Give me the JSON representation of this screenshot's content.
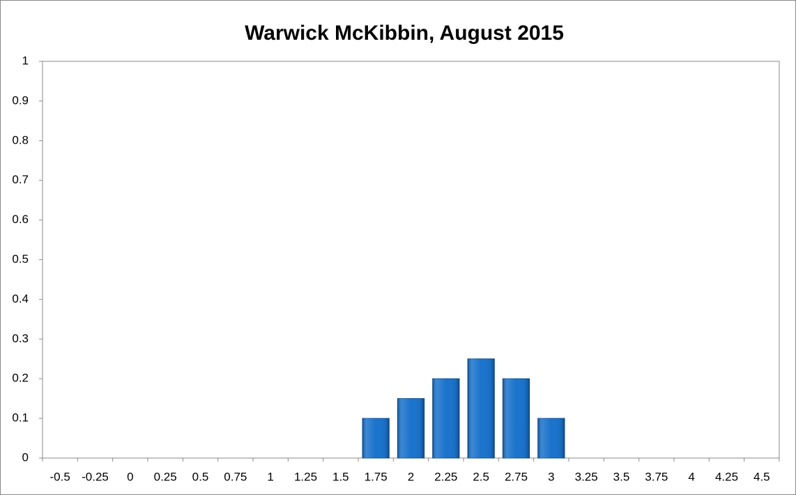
{
  "chart_data": {
    "type": "bar",
    "title": "Warwick McKibbin, August 2015",
    "categories": [
      "-0.5",
      "-0.25",
      "0",
      "0.25",
      "0.5",
      "0.75",
      "1",
      "1.25",
      "1.5",
      "1.75",
      "2",
      "2.25",
      "2.5",
      "2.75",
      "3",
      "3.25",
      "3.5",
      "3.75",
      "4",
      "4.25",
      "4.5"
    ],
    "values": [
      0,
      0,
      0,
      0,
      0,
      0,
      0,
      0,
      0,
      0.1,
      0.15,
      0.2,
      0.25,
      0.2,
      0.1,
      0,
      0,
      0,
      0,
      0,
      0
    ],
    "color": "#1a73cc",
    "ylim": [
      0,
      1
    ],
    "yticks": [
      0,
      0.1,
      0.2,
      0.3,
      0.4,
      0.5,
      0.6,
      0.7,
      0.8,
      0.9,
      1
    ],
    "grid": false
  }
}
